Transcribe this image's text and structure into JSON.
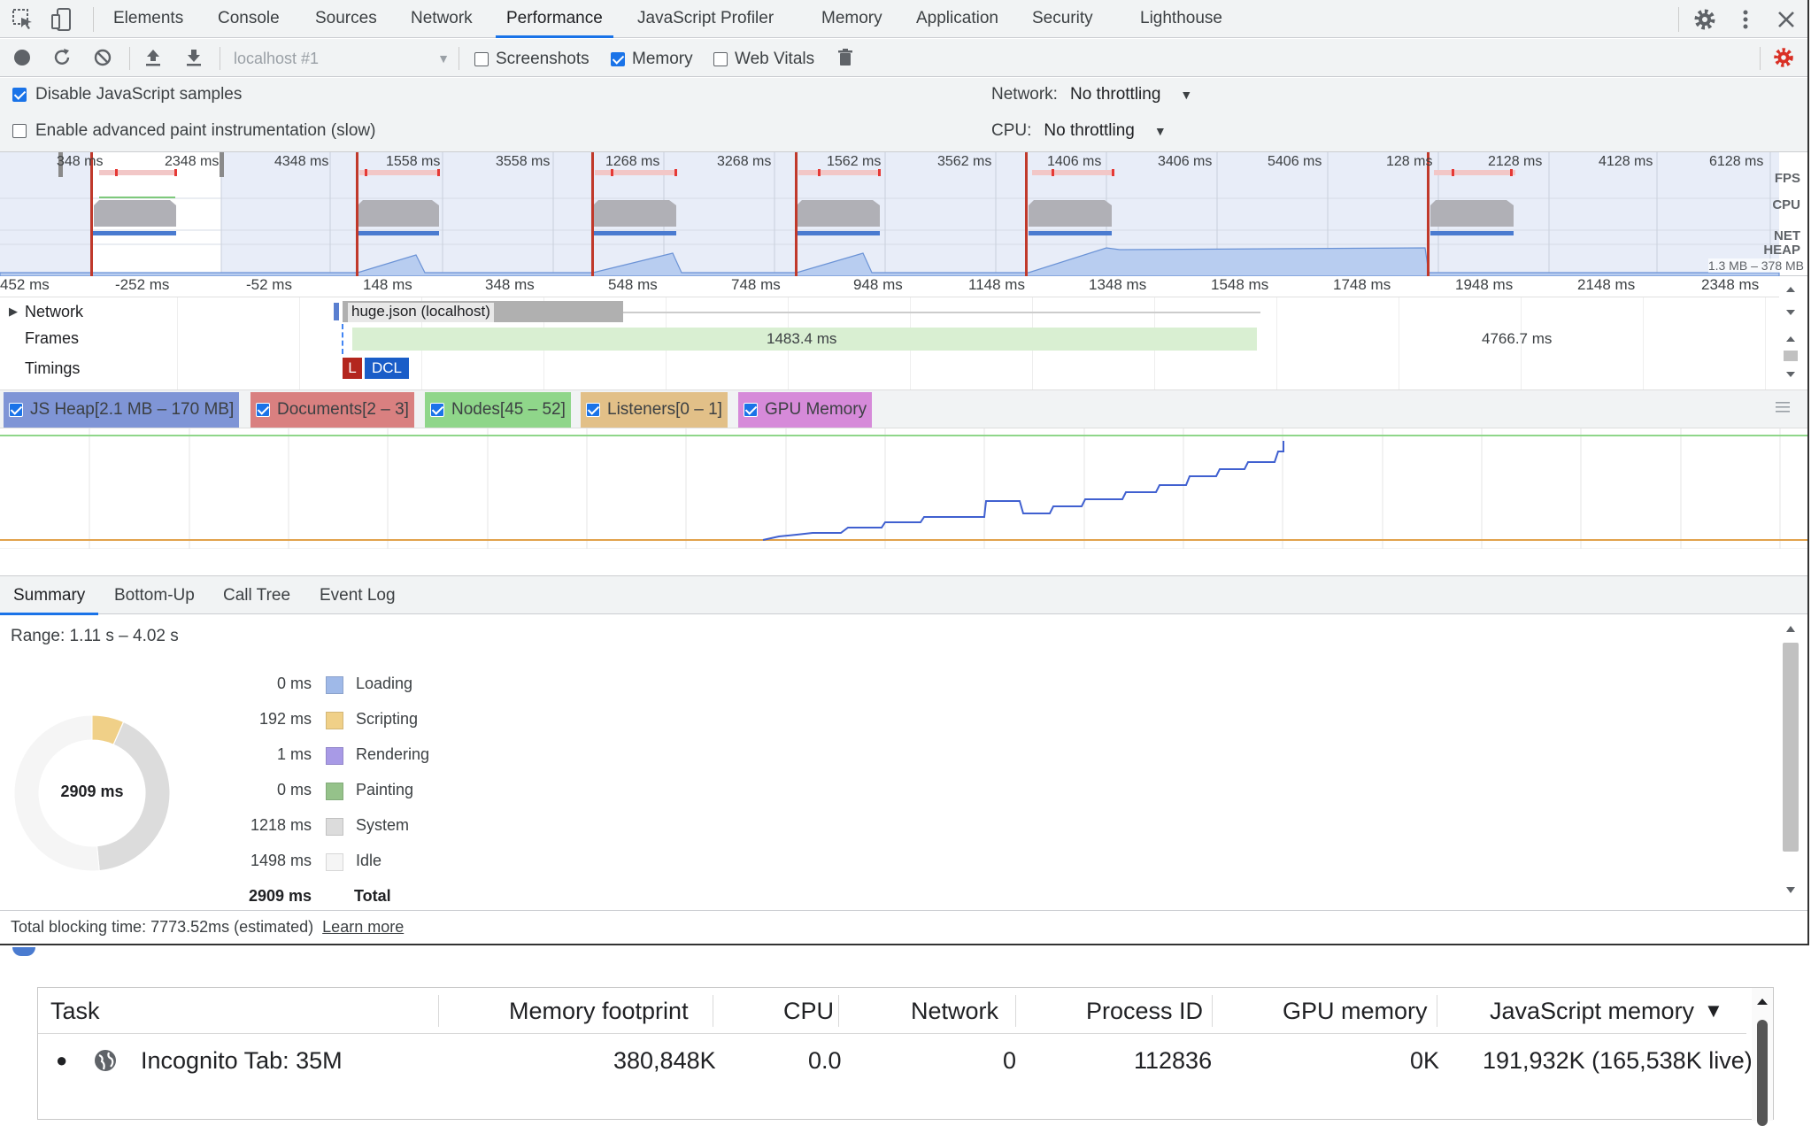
{
  "tabs": [
    "Elements",
    "Console",
    "Sources",
    "Network",
    "Performance",
    "JavaScript Profiler",
    "Memory",
    "Application",
    "Security",
    "Lighthouse"
  ],
  "active_tab": "Performance",
  "toolbar": {
    "target": "localhost #1",
    "screenshots_label": "Screenshots",
    "memory_label": "Memory",
    "webvitals_label": "Web Vitals",
    "screenshots_checked": false,
    "memory_checked": true,
    "webvitals_checked": false
  },
  "settings": {
    "disable_js_samples": "Disable JavaScript samples",
    "advanced_paint": "Enable advanced paint instrumentation (slow)",
    "network_label": "Network:",
    "network_value": "No throttling",
    "cpu_label": "CPU:",
    "cpu_value": "No throttling"
  },
  "overview": {
    "tick_labels": [
      "348 ms",
      "2348 ms",
      "4348 ms",
      "1558 ms",
      "3558 ms",
      "1268 ms",
      "3268 ms",
      "1562 ms",
      "3562 ms",
      "1406 ms",
      "3406 ms",
      "5406 ms",
      "128 ms",
      "2128 ms",
      "4128 ms",
      "6128 ms"
    ],
    "lane_labels": [
      "FPS",
      "CPU",
      "NET",
      "HEAP"
    ],
    "heap_range": "1.3 MB – 378 MB"
  },
  "ruler": [
    "452 ms",
    "-252 ms",
    "-52 ms",
    "148 ms",
    "348 ms",
    "548 ms",
    "748 ms",
    "948 ms",
    "1148 ms",
    "1348 ms",
    "1548 ms",
    "1748 ms",
    "1948 ms",
    "2148 ms",
    "2348 ms"
  ],
  "tracks": {
    "network": "Network",
    "frames": "Frames",
    "timings": "Timings",
    "request": "huge.json (localhost)",
    "frame1": "1483.4 ms",
    "frame2": "4766.7 ms",
    "mark_l": "L",
    "mark_dcl": "DCL"
  },
  "counters": [
    {
      "label": "JS Heap[2.1 MB – 170 MB]",
      "color": "#7f95d6"
    },
    {
      "label": "Documents[2 – 3]",
      "color": "#d98080"
    },
    {
      "label": "Nodes[45 – 52]",
      "color": "#8fd68a"
    },
    {
      "label": "Listeners[0 – 1]",
      "color": "#e2c088"
    },
    {
      "label": "GPU Memory",
      "color": "#d68ad9"
    }
  ],
  "bottom_tabs": [
    "Summary",
    "Bottom-Up",
    "Call Tree",
    "Event Log"
  ],
  "summary": {
    "range": "Range: 1.11 s – 4.02 s",
    "total_center": "2909 ms",
    "rows": [
      {
        "value": "0 ms",
        "name": "Loading",
        "color": "#9fb9e8",
        "ms": 0
      },
      {
        "value": "192 ms",
        "name": "Scripting",
        "color": "#f0d088",
        "ms": 192
      },
      {
        "value": "1 ms",
        "name": "Rendering",
        "color": "#a89ae6",
        "ms": 1
      },
      {
        "value": "0 ms",
        "name": "Painting",
        "color": "#95c28a",
        "ms": 0
      },
      {
        "value": "1218 ms",
        "name": "System",
        "color": "#dcdcdc",
        "ms": 1218
      },
      {
        "value": "1498 ms",
        "name": "Idle",
        "color": "#f5f5f5",
        "ms": 1498
      }
    ],
    "total_value": "2909 ms",
    "total_label": "Total"
  },
  "footer": {
    "text": "Total blocking time: 7773.52ms (estimated)",
    "link": "Learn more"
  },
  "task_manager": {
    "headers": [
      "Task",
      "Memory footprint",
      "CPU",
      "Network",
      "Process ID",
      "GPU memory",
      "JavaScript memory"
    ],
    "sort_indicator": "▼",
    "row": {
      "task": "Incognito Tab: 35M",
      "memory": "380,848K",
      "cpu": "0.0",
      "network": "0",
      "pid": "112836",
      "gpu": "0K",
      "js": "191,932K (165,538K live)"
    }
  }
}
